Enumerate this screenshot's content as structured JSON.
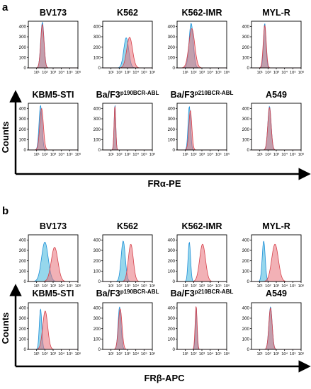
{
  "figure": {
    "panels": [
      {
        "label": "a",
        "xlabel": "FRα-PE",
        "ylabel": "Counts"
      },
      {
        "label": "b",
        "xlabel": "FRβ-APC",
        "ylabel": "Counts"
      }
    ]
  },
  "colors": {
    "control": "#3fb6dc",
    "stain": "#e8717a",
    "control_line": "#1f8fd8",
    "stain_line": "#d6404a",
    "axis": "#000000",
    "overlap": "#5e84a4"
  },
  "chart_data": [
    {
      "type": "area",
      "panel": "a",
      "xlabel": "FRα-PE",
      "ylabel": "Counts",
      "x_scale": "log",
      "xlim": [
        1,
        1000000
      ],
      "ylim": [
        0,
        450
      ],
      "x_tick_labels": [
        "10¹",
        "10²",
        "10³",
        "10⁴",
        "10⁵",
        "10⁶"
      ],
      "y_ticks": [
        0,
        100,
        200,
        300,
        400
      ],
      "plots": [
        {
          "title": "BV173",
          "series": [
            {
              "peak_x": 50,
              "width": 0.2,
              "height": 440,
              "role": "control"
            },
            {
              "peak_x": 50,
              "width": 0.2,
              "height": 420,
              "role": "stain"
            }
          ]
        },
        {
          "title": "K562",
          "series": [
            {
              "peak_x": 700,
              "width": 0.3,
              "height": 290,
              "role": "control"
            },
            {
              "peak_x": 1800,
              "width": 0.35,
              "height": 295,
              "role": "stain"
            }
          ]
        },
        {
          "title": "K562-IMR",
          "series": [
            {
              "peak_x": 50,
              "width": 0.25,
              "height": 430,
              "role": "control"
            },
            {
              "peak_x": 60,
              "width": 0.35,
              "height": 380,
              "role": "stain"
            }
          ]
        },
        {
          "title": "MYL-R",
          "series": [
            {
              "peak_x": 40,
              "width": 0.15,
              "height": 430,
              "role": "control"
            },
            {
              "peak_x": 40,
              "width": 0.18,
              "height": 410,
              "role": "stain"
            }
          ]
        },
        {
          "title": "KBM5-STI",
          "series": [
            {
              "peak_x": 30,
              "width": 0.18,
              "height": 430,
              "role": "control"
            },
            {
              "peak_x": 40,
              "width": 0.22,
              "height": 400,
              "role": "stain"
            }
          ]
        },
        {
          "title_main": "Ba/F3",
          "title_sup": "p190BCR-ABL",
          "series": [
            {
              "peak_x": 30,
              "width": 0.1,
              "height": 440,
              "role": "control"
            },
            {
              "peak_x": 30,
              "width": 0.1,
              "height": 430,
              "role": "stain"
            }
          ]
        },
        {
          "title_main": "Ba/F3",
          "title_sup": "p210BCR-ABL",
          "series": [
            {
              "peak_x": 30,
              "width": 0.15,
              "height": 420,
              "role": "control"
            },
            {
              "peak_x": 40,
              "width": 0.18,
              "height": 380,
              "role": "stain"
            }
          ]
        },
        {
          "title": "A549",
          "series": [
            {
              "peak_x": 150,
              "width": 0.2,
              "height": 420,
              "role": "control"
            },
            {
              "peak_x": 150,
              "width": 0.2,
              "height": 410,
              "role": "stain"
            }
          ]
        }
      ]
    },
    {
      "type": "area",
      "panel": "b",
      "xlabel": "FRβ-APC",
      "ylabel": "Counts",
      "x_scale": "log",
      "xlim": [
        1,
        1000000
      ],
      "ylim": [
        0,
        450
      ],
      "x_tick_labels": [
        "10¹",
        "10²",
        "10³",
        "10⁴",
        "10⁵",
        "10⁶"
      ],
      "y_ticks": [
        0,
        100,
        200,
        300,
        400
      ],
      "plots": [
        {
          "title": "BV173",
          "series": [
            {
              "peak_x": 100,
              "width": 0.4,
              "height": 380,
              "role": "control"
            },
            {
              "peak_x": 1500,
              "width": 0.4,
              "height": 330,
              "role": "stain"
            }
          ]
        },
        {
          "title": "K562",
          "series": [
            {
              "peak_x": 300,
              "width": 0.25,
              "height": 390,
              "role": "control"
            },
            {
              "peak_x": 2500,
              "width": 0.3,
              "height": 360,
              "role": "stain"
            }
          ]
        },
        {
          "title": "K562-IMR",
          "series": [
            {
              "peak_x": 30,
              "width": 0.15,
              "height": 380,
              "role": "control"
            },
            {
              "peak_x": 1200,
              "width": 0.35,
              "height": 360,
              "role": "stain"
            }
          ]
        },
        {
          "title": "MYL-R",
          "series": [
            {
              "peak_x": 30,
              "width": 0.18,
              "height": 390,
              "role": "control"
            },
            {
              "peak_x": 700,
              "width": 0.4,
              "height": 360,
              "role": "stain"
            }
          ]
        },
        {
          "title": "KBM5-STI",
          "series": [
            {
              "peak_x": 30,
              "width": 0.15,
              "height": 390,
              "role": "control"
            },
            {
              "peak_x": 110,
              "width": 0.3,
              "height": 370,
              "role": "stain"
            }
          ]
        },
        {
          "title_main": "Ba/F3",
          "title_sup": "p190BCR-ABL",
          "series": [
            {
              "peak_x": 110,
              "width": 0.18,
              "height": 410,
              "role": "control"
            },
            {
              "peak_x": 130,
              "width": 0.22,
              "height": 390,
              "role": "stain"
            }
          ]
        },
        {
          "title_main": "Ba/F3",
          "title_sup": "p210BCR-ABL",
          "series": [
            {
              "peak_x": 200,
              "width": 0.1,
              "height": 420,
              "role": "control"
            },
            {
              "peak_x": 200,
              "width": 0.12,
              "height": 420,
              "role": "stain"
            }
          ]
        },
        {
          "title": "A549",
          "series": [
            {
              "peak_x": 200,
              "width": 0.2,
              "height": 410,
              "role": "control"
            },
            {
              "peak_x": 200,
              "width": 0.2,
              "height": 400,
              "role": "stain"
            }
          ]
        }
      ]
    }
  ]
}
